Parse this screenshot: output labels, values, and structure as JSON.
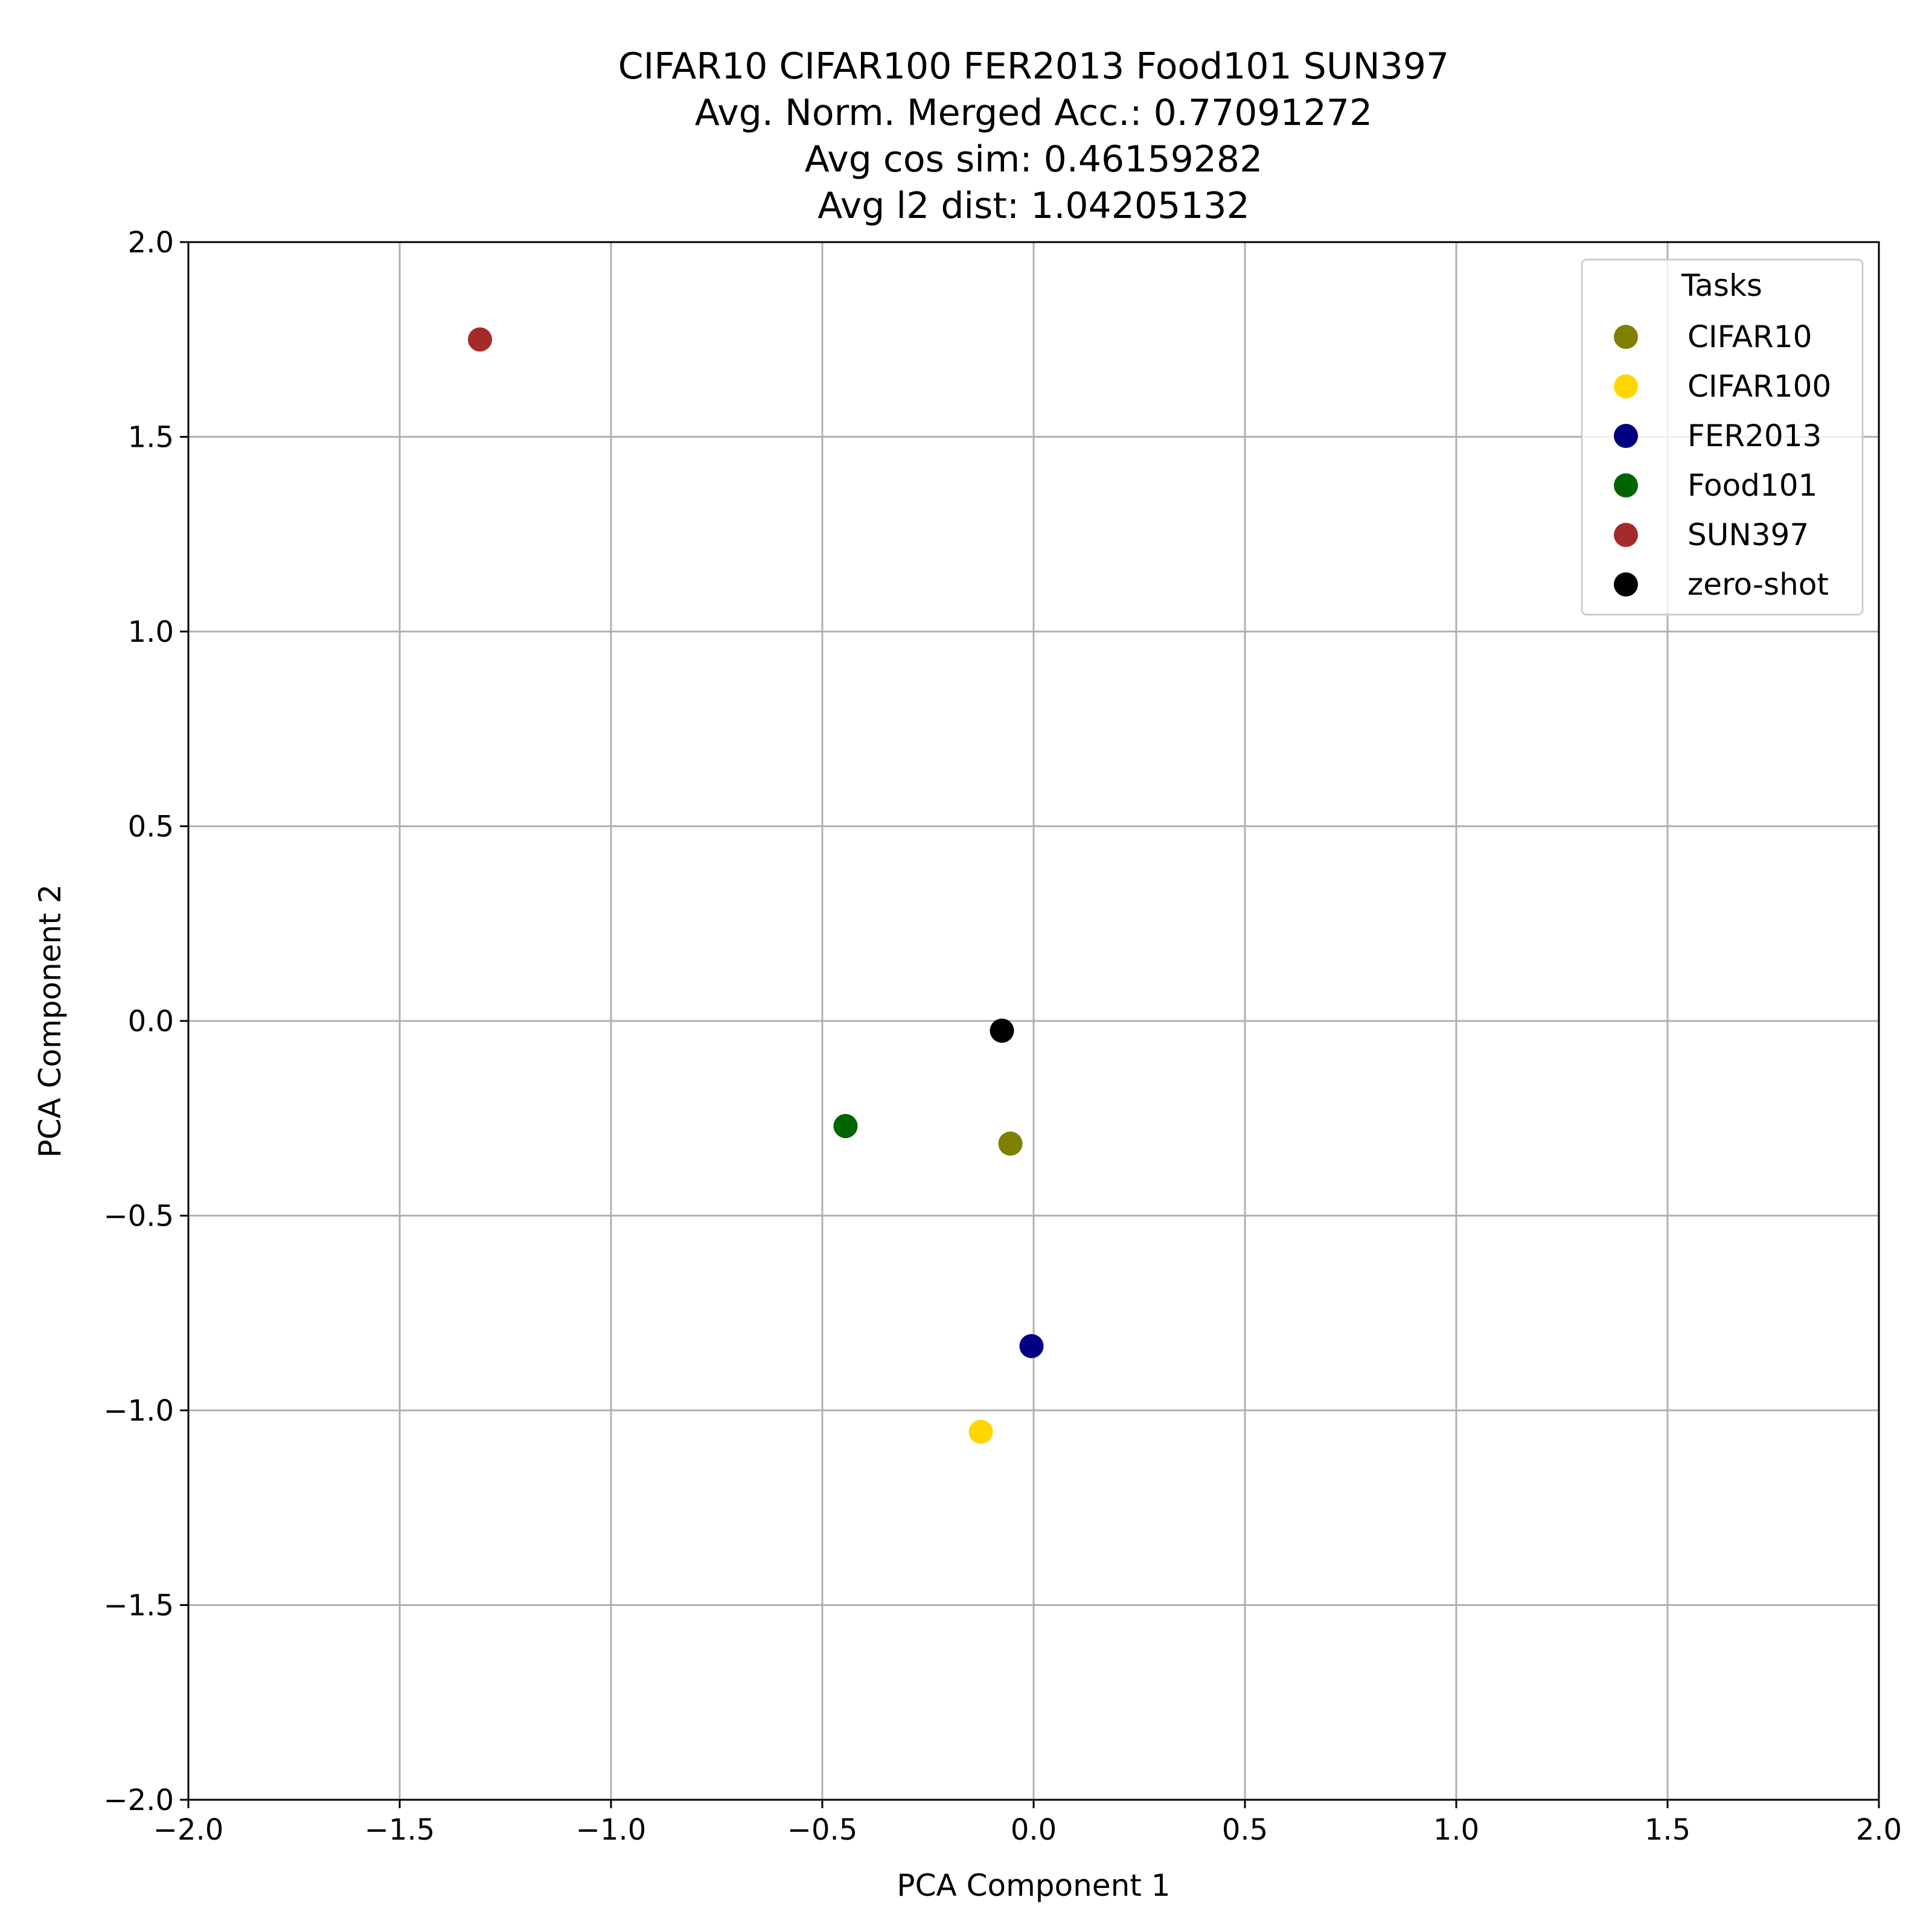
{
  "chart_data": {
    "type": "scatter",
    "title": [
      "CIFAR10 CIFAR100 FER2013 Food101 SUN397",
      "Avg. Norm. Merged Acc.: 0.77091272",
      "Avg cos sim: 0.46159282",
      "Avg l2 dist: 1.04205132"
    ],
    "xlabel": "PCA Component 1",
    "ylabel": "PCA Component 2",
    "xlim": [
      -2.0,
      2.0
    ],
    "ylim": [
      -2.0,
      2.0
    ],
    "xticks": [
      -2.0,
      -1.5,
      -1.0,
      -0.5,
      0.0,
      0.5,
      1.0,
      1.5,
      2.0
    ],
    "yticks": [
      -2.0,
      -1.5,
      -1.0,
      -0.5,
      0.0,
      0.5,
      1.0,
      1.5,
      2.0
    ],
    "xtick_labels": [
      "−2.0",
      "−1.5",
      "−1.0",
      "−0.5",
      "0.0",
      "0.5",
      "1.0",
      "1.5",
      "2.0"
    ],
    "ytick_labels": [
      "−2.0",
      "−1.5",
      "−1.0",
      "−0.5",
      "0.0",
      "0.5",
      "1.0",
      "1.5",
      "2.0"
    ],
    "grid": true,
    "legend": {
      "title": "Tasks",
      "placement": "top-right"
    },
    "series": [
      {
        "name": "CIFAR10",
        "color": "#808000",
        "x": -0.055,
        "y": -0.315
      },
      {
        "name": "CIFAR100",
        "color": "#FFD700",
        "x": -0.125,
        "y": -1.055
      },
      {
        "name": "FER2013",
        "color": "#000080",
        "x": -0.005,
        "y": -0.835
      },
      {
        "name": "Food101",
        "color": "#006400",
        "x": -0.445,
        "y": -0.27
      },
      {
        "name": "SUN397",
        "color": "#A52A2A",
        "x": -1.31,
        "y": 1.75
      },
      {
        "name": "zero-shot",
        "color": "#000000",
        "x": -0.075,
        "y": -0.025
      }
    ]
  }
}
